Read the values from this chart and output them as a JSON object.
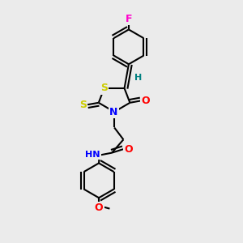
{
  "background_color": "#ebebeb",
  "atom_colors": {
    "F": "#ff00cc",
    "S": "#cccc00",
    "N": "#0000ff",
    "O": "#ff0000",
    "H": "#008080",
    "C": "#000000"
  },
  "bond_color": "#000000",
  "bond_width": 1.5,
  "figsize": [
    3.0,
    3.0
  ],
  "dpi": 100
}
